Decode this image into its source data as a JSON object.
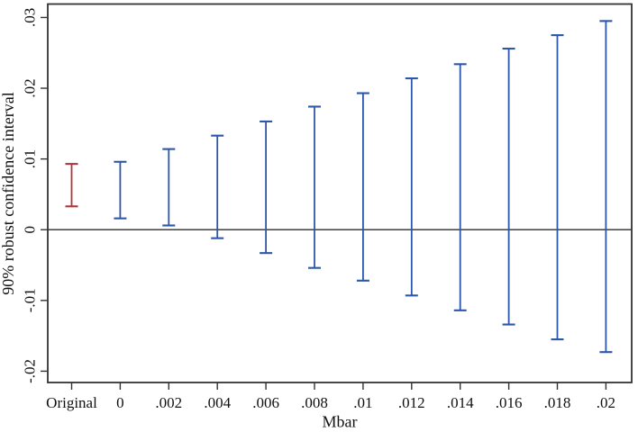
{
  "figure": {
    "background": "#ffffff",
    "axis_color": "#333333",
    "text_color": "#111111"
  },
  "chart_data": {
    "type": "errorbar",
    "title": "",
    "xlabel": "Mbar",
    "ylabel": "90% robust confidence interval",
    "categories": [
      "Original",
      "0",
      ".002",
      ".004",
      ".006",
      ".008",
      ".01",
      ".012",
      ".014",
      ".016",
      ".018",
      ".02"
    ],
    "y_ticks": [
      {
        "value": -0.02,
        "label": "-.02"
      },
      {
        "value": -0.01,
        "label": "-.01"
      },
      {
        "value": 0,
        "label": "0"
      },
      {
        "value": 0.01,
        "label": ".01"
      },
      {
        "value": 0.02,
        "label": ".02"
      },
      {
        "value": 0.03,
        "label": ".03"
      }
    ],
    "ylim": [
      -0.0216,
      0.0319
    ],
    "zero_line": true,
    "grid": false,
    "legend": "none",
    "series_colors": {
      "original": "#b13438",
      "mbar": "#2d57a8"
    },
    "intervals": [
      {
        "category": "Original",
        "series": "original",
        "lower": 0.0033,
        "upper": 0.0093
      },
      {
        "category": "0",
        "series": "mbar",
        "lower": 0.0016,
        "upper": 0.0096
      },
      {
        "category": ".002",
        "series": "mbar",
        "lower": 0.0006,
        "upper": 0.0114
      },
      {
        "category": ".004",
        "series": "mbar",
        "lower": -0.0012,
        "upper": 0.0133
      },
      {
        "category": ".006",
        "series": "mbar",
        "lower": -0.0033,
        "upper": 0.0153
      },
      {
        "category": ".008",
        "series": "mbar",
        "lower": -0.0054,
        "upper": 0.0174
      },
      {
        "category": ".01",
        "series": "mbar",
        "lower": -0.0072,
        "upper": 0.0193
      },
      {
        "category": ".012",
        "series": "mbar",
        "lower": -0.0093,
        "upper": 0.0214
      },
      {
        "category": ".014",
        "series": "mbar",
        "lower": -0.0114,
        "upper": 0.0234
      },
      {
        "category": ".016",
        "series": "mbar",
        "lower": -0.0134,
        "upper": 0.0256
      },
      {
        "category": ".018",
        "series": "mbar",
        "lower": -0.0155,
        "upper": 0.0275
      },
      {
        "category": ".02",
        "series": "mbar",
        "lower": -0.0173,
        "upper": 0.0295
      }
    ]
  }
}
